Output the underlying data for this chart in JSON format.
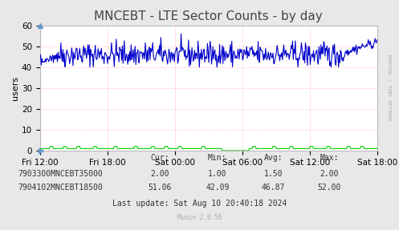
{
  "title": "MNCEBT - LTE Sector Counts - by day",
  "ylabel": "users",
  "background_color": "#e8e8e8",
  "plot_background_color": "#ffffff",
  "grid_color": "#ff9999",
  "ylim": [
    0,
    60
  ],
  "yticks": [
    0,
    10,
    20,
    30,
    40,
    50,
    60
  ],
  "xtick_labels": [
    "Fri 12:00",
    "Fri 18:00",
    "Sat 00:00",
    "Sat 06:00",
    "Sat 12:00",
    "Sat 18:00"
  ],
  "title_fontsize": 11,
  "axis_fontsize": 7.5,
  "legend_labels": [
    "7903300MNCEBT35000",
    "7904102MNCEBT18500"
  ],
  "legend_colors": [
    "#00cc00",
    "#0000cc"
  ],
  "table_headers": [
    "Cur:",
    "Min:",
    "Avg:",
    "Max:"
  ],
  "table_row1": [
    "2.00",
    "1.00",
    "1.50",
    "2.00"
  ],
  "table_row2": [
    "51.06",
    "42.09",
    "46.87",
    "52.00"
  ],
  "last_update": "Last update: Sat Aug 10 20:40:18 2024",
  "munin_version": "Munin 2.0.56",
  "rrdtool_label": "RRDTOOL / TOBI OETIKER",
  "line1_color": "#00cc00",
  "line2_color": "#0000cc",
  "n_points": 500
}
